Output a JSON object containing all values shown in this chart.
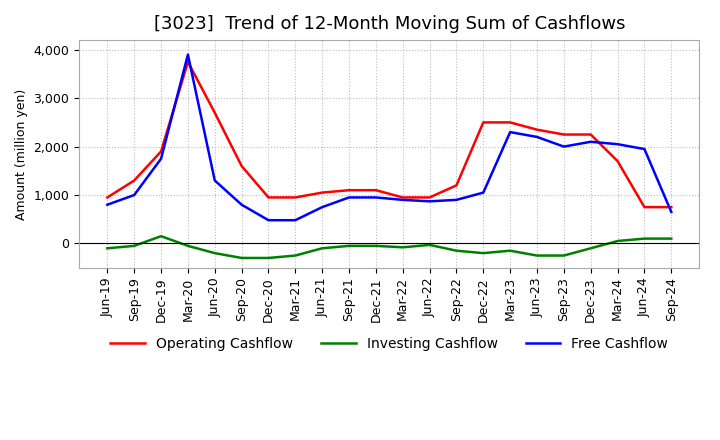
{
  "title": "[3023]  Trend of 12-Month Moving Sum of Cashflows",
  "ylabel": "Amount (million yen)",
  "x_labels": [
    "Jun-19",
    "Sep-19",
    "Dec-19",
    "Mar-20",
    "Jun-20",
    "Sep-20",
    "Dec-20",
    "Mar-21",
    "Jun-21",
    "Sep-21",
    "Dec-21",
    "Mar-22",
    "Jun-22",
    "Sep-22",
    "Dec-22",
    "Mar-23",
    "Jun-23",
    "Sep-23",
    "Dec-23",
    "Mar-24",
    "Jun-24",
    "Sep-24"
  ],
  "operating_cashflow": [
    950,
    1300,
    1900,
    3750,
    2700,
    1600,
    950,
    950,
    1050,
    1100,
    1100,
    950,
    950,
    1200,
    2500,
    2500,
    2350,
    2250,
    2250,
    1700,
    750,
    750
  ],
  "investing_cashflow": [
    -100,
    -50,
    150,
    -50,
    -200,
    -300,
    -300,
    -250,
    -100,
    -50,
    -50,
    -80,
    -30,
    -150,
    -200,
    -150,
    -250,
    -250,
    -100,
    50,
    100,
    100
  ],
  "free_cashflow": [
    800,
    1000,
    1750,
    3900,
    1300,
    800,
    480,
    480,
    750,
    950,
    950,
    900,
    870,
    900,
    1050,
    2300,
    2200,
    2000,
    2100,
    2050,
    1950,
    650
  ],
  "operating_color": "#FF0000",
  "investing_color": "#008000",
  "free_color": "#0000FF",
  "ylim_min": -500,
  "ylim_max": 4200,
  "yticks": [
    0,
    1000,
    2000,
    3000,
    4000
  ],
  "background_color": "#FFFFFF",
  "grid_color": "#AAAAAA",
  "title_fontsize": 13,
  "legend_fontsize": 10,
  "axis_fontsize": 9
}
